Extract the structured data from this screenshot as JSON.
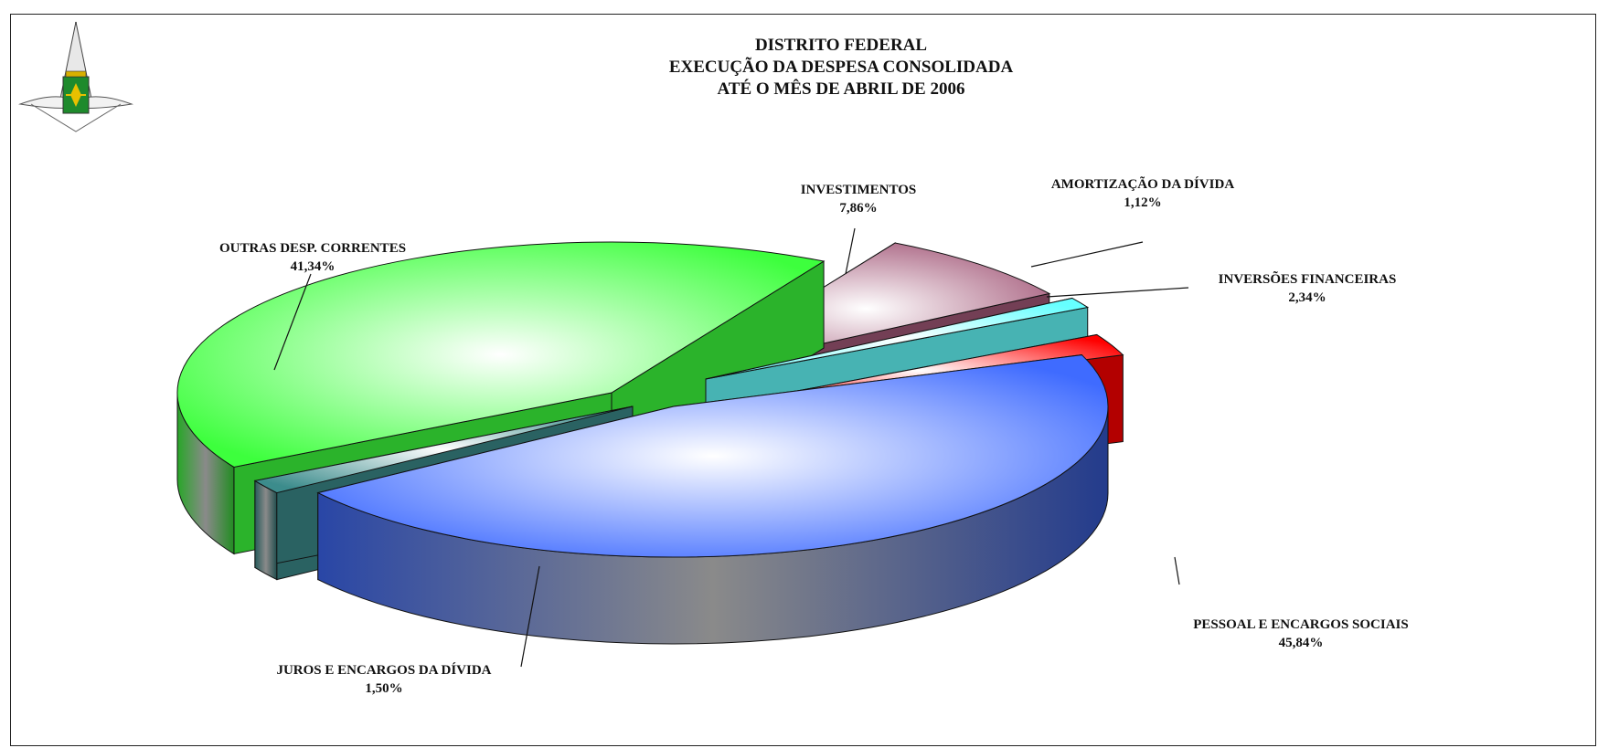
{
  "titles": {
    "line1": "DISTRITO FEDERAL",
    "line2": "EXECUÇÃO DA DESPESA CONSOLIDADA",
    "line3": "ATÉ O MÊS DE  ABRIL DE 2006"
  },
  "logo_icon": "distrito-federal-emblem-icon",
  "chart_data": {
    "type": "pie",
    "title": "DISTRITO FEDERAL EXECUÇÃO DA DESPESA CONSOLIDADA ATÉ O MÊS DE  ABRIL DE 2006",
    "slices": [
      {
        "name": "PESSOAL E ENCARGOS SOCIAIS",
        "value": 45.84,
        "label": "45,84%",
        "color": "#3f6bff"
      },
      {
        "name": "JUROS E ENCARGOS DA DÍVIDA",
        "value": 1.5,
        "label": "1,50%",
        "color": "#3c8c8c"
      },
      {
        "name": "OUTRAS DESP. CORRENTES",
        "value": 41.34,
        "label": "41,34%",
        "color": "#3dff3d"
      },
      {
        "name": "INVESTIMENTOS",
        "value": 7.86,
        "label": "7,86%",
        "color": "#a45a7a"
      },
      {
        "name": "AMORTIZAÇÃO DA DÍVIDA",
        "value": 1.12,
        "label": "1,12%",
        "color": "#66ffff"
      },
      {
        "name": "INVERSÕES FINANCEIRAS",
        "value": 2.34,
        "label": "2,34%",
        "color": "#ff0000"
      }
    ],
    "style": "3d-exploded",
    "legend": "none"
  }
}
